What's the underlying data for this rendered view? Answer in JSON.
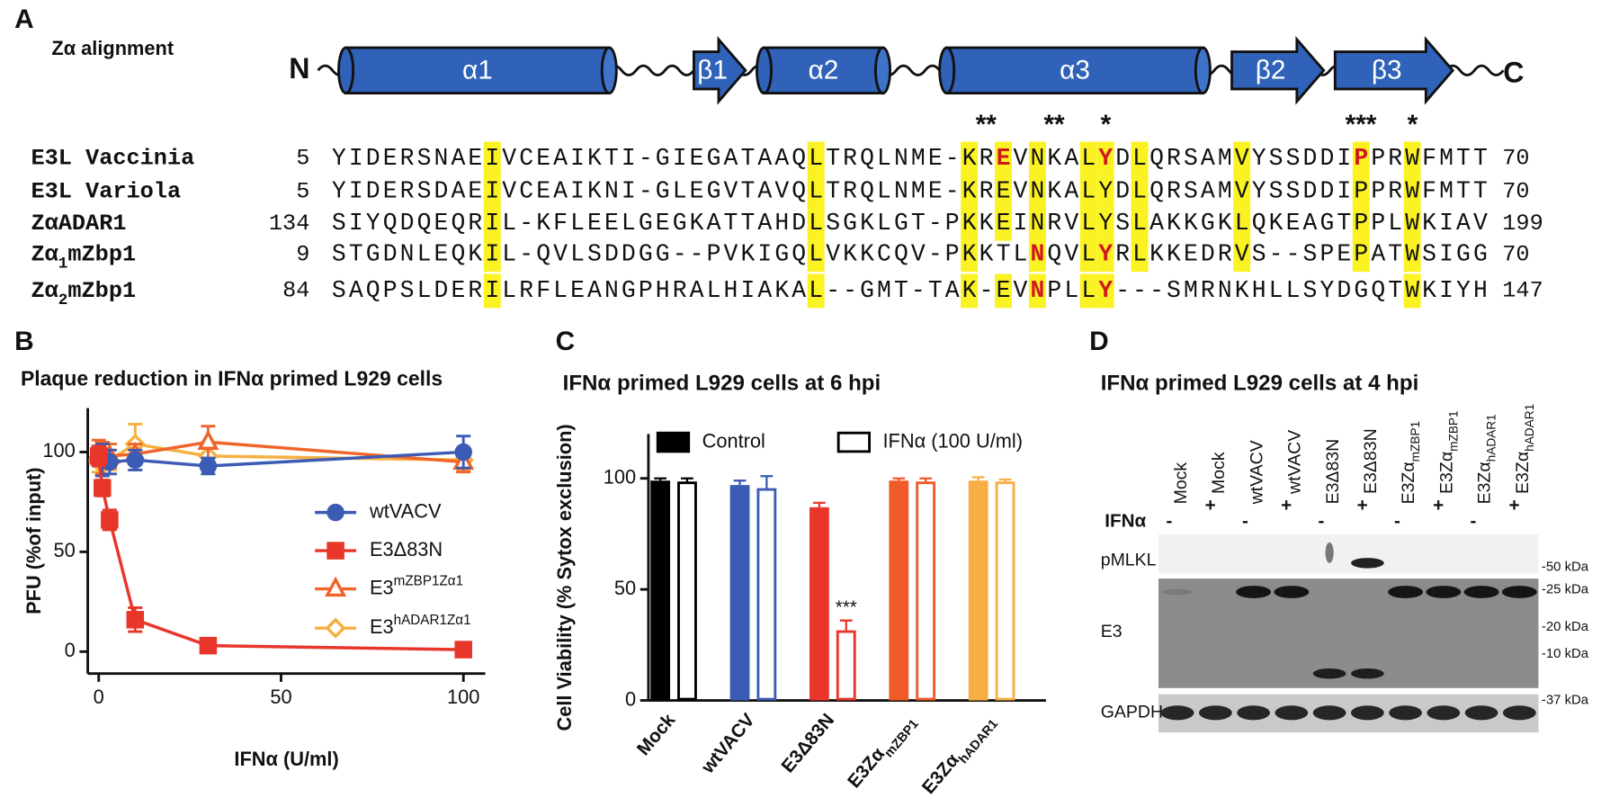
{
  "panel_labels": [
    "A",
    "B",
    "C",
    "D"
  ],
  "alignment": {
    "title": "Zα alignment",
    "terminals": [
      "N",
      "C"
    ],
    "elements": [
      {
        "label": "α1",
        "shape": "helix"
      },
      {
        "label": "β1",
        "shape": "strand"
      },
      {
        "label": "α2",
        "shape": "helix"
      },
      {
        "label": "α3",
        "shape": "helix"
      },
      {
        "label": "β2",
        "shape": "strand"
      },
      {
        "label": "β3",
        "shape": "strand"
      }
    ],
    "asterisks": [
      "**",
      "**",
      "*",
      "***",
      "*"
    ],
    "rows": [
      {
        "name": "E3L Vaccinia",
        "start": 5,
        "sequence": "YIDERSNAEIVCEAIKTI-GIEGATAAQLTRQLNME-KREVNKALYDLQRSAMVYSSDDIPPRWFMTT",
        "end": 70
      },
      {
        "name": "E3L Variola",
        "start": 5,
        "sequence": "YIDERSDAEIVCEAIKNI-GLEGVTAVQLTRQLNME-KREVNKALYDLQRSAMVYSSDDIPPRWFMTT",
        "end": 70
      },
      {
        "name": "ZαADAR1",
        "start": 134,
        "sequence": "SIYQDQEQRIL-KFLEELGEGKATTAHDLSGKLGT-PKKEINRVLYSLAKKGKLQKEAGTPPLWKIAV",
        "end": 199
      },
      {
        "name": "Zα1mZbp1",
        "start": 9,
        "sequence": "STGDNLEQKIL-QVLSDDGG--PVKIGQLVKKCQV-PKKTLNQVLYRLKKEDRVS--SPEPATWSIGG",
        "end": 70
      },
      {
        "name": "Zα2mZbp1",
        "start": 84,
        "sequence": "SAQPSLDERILRFLEANGPHRALHIAKAL--GMT-TAK-EVNPLLY---SMRNKHLLSYDGQTWKIYH",
        "end": 147
      }
    ]
  },
  "chart_data": [
    {
      "type": "line",
      "title": "Plaque reduction in IFNα primed L929 cells",
      "x_label": "IFNα (U/ml)",
      "y_label": "PFU (%of input)",
      "x": [
        0,
        1,
        3,
        10,
        30,
        100
      ],
      "xlim": [
        -3,
        106
      ],
      "ylim": [
        -11,
        122
      ],
      "xticks": [
        0,
        50,
        100
      ],
      "yticks": [
        0,
        50,
        100
      ],
      "series": [
        {
          "name": "wtVACV",
          "color": "#3b5bb5",
          "marker": "circle",
          "values": [
            98,
            96,
            95,
            96,
            93,
            100
          ],
          "errors": [
            5,
            8,
            6,
            5,
            4,
            8
          ]
        },
        {
          "name": "E3Δ83N",
          "color": "#e8362b",
          "marker": "square",
          "values": [
            98,
            82,
            66,
            16,
            3,
            1
          ],
          "errors": [
            5,
            4,
            5,
            6,
            2,
            2
          ]
        },
        {
          "name": "E3mZBP1Zα1",
          "color": "#f0652a",
          "marker": "triangle",
          "values": [
            100,
            97,
            98,
            99,
            105,
            95
          ],
          "errors": [
            6,
            8,
            6,
            5,
            8,
            5
          ]
        },
        {
          "name": "E3hADAR1Zα1",
          "color": "#f6b042",
          "marker": "diamond",
          "values": [
            95,
            100,
            96,
            104,
            98,
            96
          ],
          "errors": [
            5,
            5,
            5,
            10,
            5,
            5
          ]
        }
      ]
    },
    {
      "type": "bar",
      "title": "IFNα primed L929 cells at 6 hpi",
      "y_label": "Cell Viability (% Sytox exclusion)",
      "categories": [
        "Mock",
        "wtVACV",
        "E3Δ83N",
        "E3ZαmZBP1",
        "E3ZαhADAR1"
      ],
      "category_colors": [
        "#000000",
        "#3b5bb5",
        "#e8362b",
        "#f15a29",
        "#f8ae45"
      ],
      "ylim": [
        0,
        120
      ],
      "yticks": [
        0,
        50,
        100
      ],
      "series": [
        {
          "name": "Control",
          "color": "#000000",
          "fill": "filled",
          "values": [
            99,
            97,
            87,
            99,
            99
          ],
          "errors": [
            1,
            2,
            2,
            1,
            1.5
          ]
        },
        {
          "name": "IFNα (100 U/ml)",
          "color": "#000000",
          "fill": "hollow",
          "values": [
            98,
            95,
            31,
            98,
            98
          ],
          "errors": [
            2,
            6,
            5,
            2,
            1.5
          ]
        }
      ],
      "annotations": [
        "***"
      ]
    }
  ],
  "blot": {
    "title": "IFNα primed L929 cells at 4 hpi",
    "treatment_label": "IFNα",
    "lanes": [
      {
        "treatment": "-",
        "name": "Mock"
      },
      {
        "treatment": "+",
        "name": "Mock"
      },
      {
        "treatment": "-",
        "name": "wtVACV"
      },
      {
        "treatment": "+",
        "name": "wtVACV"
      },
      {
        "treatment": "-",
        "name": "E3Δ83N"
      },
      {
        "treatment": "+",
        "name": "E3Δ83N"
      },
      {
        "treatment": "-",
        "name": "E3ZαmZBP1"
      },
      {
        "treatment": "+",
        "name": "E3ZαmZBP1"
      },
      {
        "treatment": "-",
        "name": "E3ZαhADAR1"
      },
      {
        "treatment": "+",
        "name": "E3ZαhADAR1"
      }
    ],
    "rows": [
      {
        "label": "pMLKL",
        "markers": [
          "-50 kDa"
        ]
      },
      {
        "label": "E3",
        "markers": [
          "-25 kDa",
          "-20 kDa",
          "-10 kDa"
        ]
      },
      {
        "label": "GAPDH",
        "markers": [
          "-37 kDa"
        ]
      }
    ]
  }
}
